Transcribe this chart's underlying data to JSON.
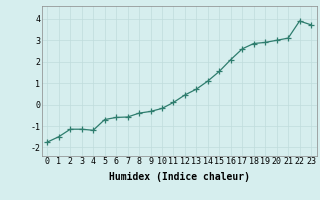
{
  "x": [
    0,
    1,
    2,
    3,
    4,
    5,
    6,
    7,
    8,
    9,
    10,
    11,
    12,
    13,
    14,
    15,
    16,
    17,
    18,
    19,
    20,
    21,
    22,
    23
  ],
  "y": [
    -1.75,
    -1.5,
    -1.15,
    -1.15,
    -1.2,
    -0.7,
    -0.6,
    -0.58,
    -0.4,
    -0.32,
    -0.18,
    0.1,
    0.45,
    0.72,
    1.1,
    1.55,
    2.1,
    2.6,
    2.85,
    2.9,
    3.0,
    3.1,
    3.9,
    3.72
  ],
  "line_color": "#2e7d6e",
  "marker": "+",
  "marker_size": 4,
  "linewidth": 0.9,
  "bg_color": "#d6eeee",
  "grid_color": "#c0dcdc",
  "xlabel": "Humidex (Indice chaleur)",
  "xlabel_fontsize": 7,
  "xlabel_fontweight": "bold",
  "tick_fontsize": 6,
  "yticks": [
    -2,
    -1,
    0,
    1,
    2,
    3,
    4
  ],
  "ylim": [
    -2.4,
    4.6
  ],
  "xlim": [
    -0.5,
    23.5
  ],
  "xticks": [
    0,
    1,
    2,
    3,
    4,
    5,
    6,
    7,
    8,
    9,
    10,
    11,
    12,
    13,
    14,
    15,
    16,
    17,
    18,
    19,
    20,
    21,
    22,
    23
  ]
}
